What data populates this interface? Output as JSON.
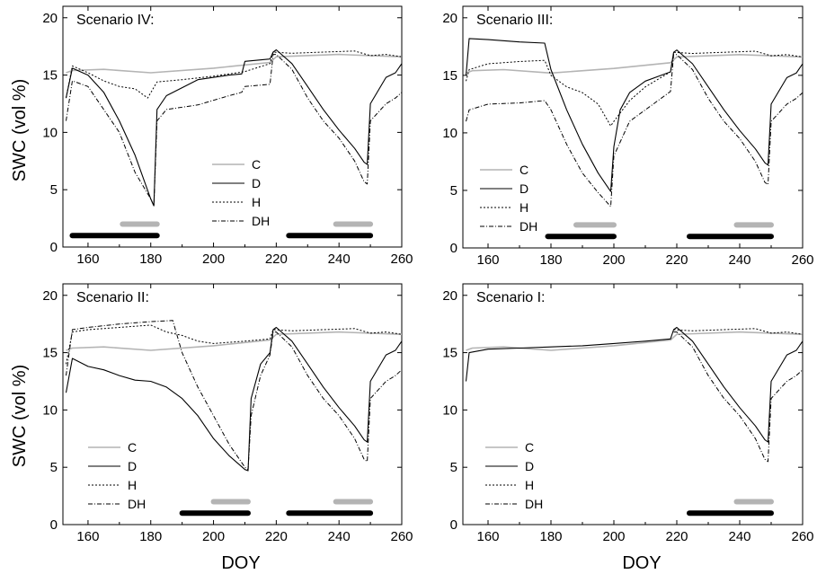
{
  "figure": {
    "x_label": "DOY",
    "y_label": "SWC (vol %)",
    "colors": {
      "C": "#b4b4b4",
      "D": "#000000",
      "H": "#000000",
      "DH": "#000000",
      "bar_black": "#000000",
      "bar_gray": "#b4b4b4"
    }
  },
  "chart_data": [
    {
      "type": "line",
      "title": "Scenario IV:",
      "xlim": [
        152,
        260
      ],
      "ylim": [
        0,
        21
      ],
      "x_ticks": [
        "160",
        "180",
        "200",
        "220",
        "240",
        "260"
      ],
      "y_ticks": [
        "0",
        "5",
        "10",
        "15",
        "20"
      ],
      "legend": {
        "placement": "center",
        "entries": [
          "C",
          "D",
          "H",
          "DH"
        ]
      },
      "series": [
        {
          "name": "C",
          "x": [
            153,
            155,
            165,
            180,
            200,
            218,
            220,
            240,
            250,
            260
          ],
          "y": [
            15.2,
            15.4,
            15.5,
            15.2,
            15.6,
            16.1,
            16.6,
            16.8,
            16.7,
            16.6
          ]
        },
        {
          "name": "D",
          "x": [
            153,
            155,
            160,
            165,
            170,
            175,
            180,
            181,
            182,
            185,
            195,
            205,
            209,
            210,
            218,
            219,
            220,
            225,
            230,
            235,
            240,
            245,
            248,
            249,
            250,
            255,
            258,
            260
          ],
          "y": [
            13.0,
            15.6,
            15.0,
            13.5,
            11.0,
            8.0,
            4.2,
            3.6,
            12.0,
            13.2,
            14.6,
            15.0,
            15.1,
            16.2,
            16.4,
            17.0,
            17.2,
            16.0,
            14.0,
            12.0,
            10.2,
            8.6,
            7.4,
            7.2,
            12.5,
            14.8,
            15.2,
            16.0
          ]
        },
        {
          "name": "H",
          "x": [
            153,
            155,
            160,
            165,
            170,
            175,
            179,
            182,
            190,
            200,
            210,
            218,
            219,
            225,
            235,
            245,
            250,
            255,
            260
          ],
          "y": [
            13.0,
            15.8,
            15.2,
            14.5,
            14.0,
            13.8,
            13.0,
            14.4,
            14.6,
            14.9,
            15.3,
            16.0,
            17.0,
            16.9,
            17.0,
            17.1,
            16.7,
            16.8,
            16.6
          ]
        },
        {
          "name": "DH",
          "x": [
            153,
            155,
            160,
            165,
            170,
            175,
            180,
            181,
            182,
            185,
            195,
            205,
            209,
            210,
            218,
            219,
            220,
            225,
            230,
            235,
            240,
            245,
            248,
            249,
            250,
            255,
            258,
            260
          ],
          "y": [
            11.0,
            14.5,
            14.0,
            12.0,
            10.0,
            6.5,
            4.2,
            3.6,
            11.0,
            12.0,
            12.4,
            13.2,
            13.5,
            14.0,
            14.2,
            16.8,
            16.8,
            15.5,
            13.0,
            11.0,
            9.5,
            7.5,
            5.7,
            5.5,
            11.0,
            12.5,
            13.0,
            13.5
          ]
        }
      ],
      "treatment_bars": [
        {
          "color": "black",
          "x": [
            155,
            182
          ],
          "y": 1.0
        },
        {
          "color": "gray",
          "x": [
            171,
            182
          ],
          "y": 2.0
        },
        {
          "color": "black",
          "x": [
            224,
            250
          ],
          "y": 1.0
        },
        {
          "color": "gray",
          "x": [
            239,
            250
          ],
          "y": 2.0
        }
      ]
    },
    {
      "type": "line",
      "title": "Scenario III:",
      "xlim": [
        152,
        260
      ],
      "ylim": [
        0,
        21
      ],
      "x_ticks": [
        "160",
        "180",
        "200",
        "220",
        "240",
        "260"
      ],
      "y_ticks": [
        "0",
        "5",
        "10",
        "15",
        "20"
      ],
      "legend": {
        "placement": "bottom-left",
        "entries": [
          "C",
          "D",
          "H",
          "DH"
        ]
      },
      "series": [
        {
          "name": "C",
          "x": [
            153,
            155,
            165,
            180,
            200,
            218,
            220,
            240,
            250,
            260
          ],
          "y": [
            15.2,
            15.4,
            15.5,
            15.2,
            15.6,
            16.1,
            16.6,
            16.8,
            16.7,
            16.6
          ]
        },
        {
          "name": "D",
          "x": [
            153,
            154,
            160,
            170,
            178,
            180,
            185,
            190,
            195,
            199,
            200,
            202,
            205,
            210,
            215,
            218,
            219,
            220,
            225,
            230,
            235,
            240,
            245,
            248,
            249,
            250,
            255,
            258,
            260
          ],
          "y": [
            15.0,
            18.2,
            18.1,
            17.9,
            17.8,
            15.5,
            12.0,
            9.0,
            6.5,
            4.9,
            8.8,
            12.0,
            13.5,
            14.5,
            15.0,
            15.3,
            17.0,
            17.2,
            16.0,
            14.0,
            12.0,
            10.2,
            8.6,
            7.4,
            7.2,
            12.5,
            14.8,
            15.2,
            16.0
          ]
        },
        {
          "name": "H",
          "x": [
            153,
            154,
            160,
            170,
            178,
            180,
            185,
            190,
            195,
            199,
            200,
            205,
            210,
            218,
            219,
            225,
            235,
            245,
            250,
            255,
            260
          ],
          "y": [
            14.5,
            15.5,
            16.0,
            16.2,
            16.3,
            15.0,
            14.0,
            13.5,
            12.5,
            10.6,
            11.0,
            12.8,
            14.0,
            15.3,
            17.0,
            16.9,
            17.0,
            17.1,
            16.7,
            16.8,
            16.6
          ]
        },
        {
          "name": "DH",
          "x": [
            153,
            154,
            160,
            170,
            178,
            180,
            185,
            190,
            195,
            199,
            200,
            205,
            210,
            218,
            219,
            220,
            225,
            230,
            235,
            240,
            245,
            248,
            249,
            250,
            255,
            258,
            260
          ],
          "y": [
            11.0,
            12.0,
            12.5,
            12.6,
            12.8,
            12.0,
            9.0,
            6.5,
            4.8,
            3.6,
            8.0,
            11.0,
            12.0,
            13.6,
            16.8,
            16.8,
            15.5,
            13.0,
            11.0,
            9.5,
            7.5,
            5.7,
            5.5,
            11.0,
            12.5,
            13.0,
            13.5
          ]
        }
      ],
      "treatment_bars": [
        {
          "color": "black",
          "x": [
            179,
            200
          ],
          "y": 1.0
        },
        {
          "color": "gray",
          "x": [
            188,
            200
          ],
          "y": 2.0
        },
        {
          "color": "black",
          "x": [
            224,
            250
          ],
          "y": 1.0
        },
        {
          "color": "gray",
          "x": [
            239,
            250
          ],
          "y": 2.0
        }
      ]
    },
    {
      "type": "line",
      "title": "Scenario II:",
      "xlim": [
        152,
        260
      ],
      "ylim": [
        0,
        21
      ],
      "x_ticks": [
        "160",
        "180",
        "200",
        "220",
        "240",
        "260"
      ],
      "y_ticks": [
        "0",
        "5",
        "10",
        "15",
        "20"
      ],
      "legend": {
        "placement": "bottom-left",
        "entries": [
          "C",
          "D",
          "H",
          "DH"
        ]
      },
      "series": [
        {
          "name": "C",
          "x": [
            153,
            155,
            165,
            180,
            200,
            218,
            220,
            240,
            250,
            260
          ],
          "y": [
            15.2,
            15.4,
            15.5,
            15.2,
            15.6,
            16.1,
            16.6,
            16.8,
            16.7,
            16.6
          ]
        },
        {
          "name": "D",
          "x": [
            153,
            155,
            160,
            165,
            170,
            175,
            180,
            185,
            190,
            195,
            200,
            205,
            210,
            211,
            212,
            215,
            218,
            219,
            220,
            225,
            230,
            235,
            240,
            245,
            248,
            249,
            250,
            255,
            258,
            260
          ],
          "y": [
            11.5,
            14.5,
            13.8,
            13.5,
            13.0,
            12.6,
            12.5,
            12.0,
            11.0,
            9.5,
            7.5,
            6.0,
            4.8,
            4.7,
            11.0,
            14.0,
            15.0,
            17.0,
            17.2,
            16.0,
            14.0,
            12.0,
            10.2,
            8.6,
            7.4,
            7.2,
            12.5,
            14.8,
            15.2,
            16.0
          ]
        },
        {
          "name": "H",
          "x": [
            153,
            155,
            160,
            170,
            180,
            185,
            190,
            195,
            200,
            205,
            210,
            218,
            219,
            225,
            235,
            245,
            250,
            255,
            260
          ],
          "y": [
            14.0,
            16.8,
            17.0,
            17.2,
            17.4,
            16.8,
            16.5,
            16.0,
            15.8,
            15.9,
            16.0,
            16.2,
            17.0,
            16.9,
            17.0,
            17.1,
            16.7,
            16.8,
            16.6
          ]
        },
        {
          "name": "DH",
          "x": [
            153,
            155,
            160,
            170,
            180,
            187,
            190,
            195,
            200,
            205,
            210,
            211,
            212,
            215,
            218,
            219,
            220,
            225,
            230,
            235,
            240,
            245,
            248,
            249,
            250,
            255,
            258,
            260
          ],
          "y": [
            13.0,
            17.0,
            17.2,
            17.5,
            17.7,
            17.8,
            15.0,
            12.0,
            9.5,
            7.0,
            5.0,
            4.8,
            9.5,
            13.0,
            14.8,
            16.8,
            16.8,
            15.5,
            13.0,
            11.0,
            9.5,
            7.5,
            5.7,
            5.5,
            11.0,
            12.5,
            13.0,
            13.5
          ]
        }
      ],
      "treatment_bars": [
        {
          "color": "black",
          "x": [
            190,
            211
          ],
          "y": 1.0
        },
        {
          "color": "gray",
          "x": [
            200,
            211
          ],
          "y": 2.0
        },
        {
          "color": "black",
          "x": [
            224,
            250
          ],
          "y": 1.0
        },
        {
          "color": "gray",
          "x": [
            239,
            250
          ],
          "y": 2.0
        }
      ]
    },
    {
      "type": "line",
      "title": "Scenario I:",
      "xlim": [
        152,
        260
      ],
      "ylim": [
        0,
        21
      ],
      "x_ticks": [
        "160",
        "180",
        "200",
        "220",
        "240",
        "260"
      ],
      "y_ticks": [
        "0",
        "5",
        "10",
        "15",
        "20"
      ],
      "legend": {
        "placement": "bottom-left",
        "entries": [
          "C",
          "D",
          "H",
          "DH"
        ]
      },
      "series": [
        {
          "name": "C",
          "x": [
            153,
            155,
            165,
            180,
            200,
            218,
            220,
            240,
            250,
            260
          ],
          "y": [
            15.2,
            15.4,
            15.5,
            15.2,
            15.6,
            16.1,
            16.6,
            16.8,
            16.7,
            16.6
          ]
        },
        {
          "name": "D",
          "x": [
            153,
            154,
            160,
            170,
            180,
            190,
            200,
            210,
            218,
            219,
            220,
            225,
            230,
            235,
            240,
            245,
            248,
            249,
            250,
            255,
            258,
            260
          ],
          "y": [
            12.5,
            15.0,
            15.3,
            15.4,
            15.5,
            15.6,
            15.8,
            16.0,
            16.2,
            17.0,
            17.2,
            16.0,
            14.0,
            12.0,
            10.2,
            8.6,
            7.4,
            7.2,
            12.5,
            14.8,
            15.2,
            16.0
          ]
        },
        {
          "name": "H",
          "x": [
            219,
            225,
            235,
            245,
            250,
            255,
            260
          ],
          "y": [
            17.0,
            16.9,
            17.0,
            17.1,
            16.7,
            16.8,
            16.6
          ]
        },
        {
          "name": "DH",
          "x": [
            219,
            220,
            225,
            230,
            235,
            240,
            245,
            248,
            249,
            250,
            255,
            258,
            260
          ],
          "y": [
            16.8,
            16.8,
            15.5,
            13.0,
            11.0,
            9.5,
            7.5,
            5.7,
            5.5,
            11.0,
            12.5,
            13.0,
            13.5
          ]
        }
      ],
      "treatment_bars": [
        {
          "color": "black",
          "x": [
            224,
            250
          ],
          "y": 1.0
        },
        {
          "color": "gray",
          "x": [
            239,
            250
          ],
          "y": 2.0
        }
      ]
    }
  ]
}
